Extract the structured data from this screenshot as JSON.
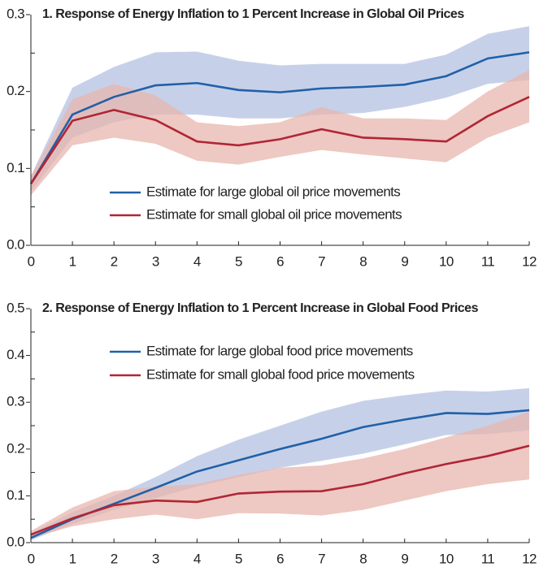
{
  "chart_data": [
    {
      "type": "line",
      "title": "1. Response of Energy Inflation to 1 Percent Increase in Global Oil Prices",
      "x": [
        0,
        1,
        2,
        3,
        4,
        5,
        6,
        7,
        8,
        9,
        10,
        11,
        12
      ],
      "xlim": [
        0,
        12
      ],
      "xticks": [
        0,
        1,
        2,
        3,
        4,
        5,
        6,
        7,
        8,
        9,
        10,
        11,
        12
      ],
      "ylim": [
        0,
        0.3
      ],
      "yticks": [
        {
          "value": 0,
          "label": "0.0"
        },
        0.1,
        0.2,
        0.3
      ],
      "yminor_ticks": [
        0.05,
        0.15,
        0.25
      ],
      "series": [
        {
          "name": "Estimate for large global oil price movements",
          "color": "#2160a8",
          "band_color": "#b3c1e2",
          "values": [
            0.08,
            0.17,
            0.193,
            0.208,
            0.211,
            0.202,
            0.199,
            0.204,
            0.206,
            0.209,
            0.22,
            0.243,
            0.251
          ],
          "upper": [
            0.09,
            0.205,
            0.232,
            0.251,
            0.252,
            0.24,
            0.234,
            0.236,
            0.236,
            0.236,
            0.248,
            0.275,
            0.285
          ],
          "lower": [
            0.07,
            0.14,
            0.16,
            0.17,
            0.17,
            0.165,
            0.165,
            0.17,
            0.172,
            0.18,
            0.192,
            0.21,
            0.215
          ]
        },
        {
          "name": "Estimate for small global oil price movements",
          "color": "#b02634",
          "band_color": "#e8b5ae",
          "values": [
            0.08,
            0.162,
            0.176,
            0.163,
            0.135,
            0.13,
            0.138,
            0.151,
            0.14,
            0.138,
            0.135,
            0.168,
            0.193
          ],
          "upper": [
            0.09,
            0.19,
            0.21,
            0.195,
            0.16,
            0.155,
            0.16,
            0.18,
            0.165,
            0.165,
            0.163,
            0.2,
            0.228
          ],
          "lower": [
            0.065,
            0.13,
            0.14,
            0.132,
            0.11,
            0.105,
            0.115,
            0.124,
            0.118,
            0.113,
            0.108,
            0.14,
            0.16
          ]
        }
      ]
    },
    {
      "type": "line",
      "title": "2. Response of Energy Inflation to 1 Percent Increase in Global Food Prices",
      "x": [
        0,
        1,
        2,
        3,
        4,
        5,
        6,
        7,
        8,
        9,
        10,
        11,
        12
      ],
      "xlim": [
        0,
        12
      ],
      "xticks": [
        0,
        1,
        2,
        3,
        4,
        5,
        6,
        7,
        8,
        9,
        10,
        11,
        12
      ],
      "ylim": [
        0,
        0.5
      ],
      "yticks": [
        {
          "value": 0,
          "label": "0.0"
        },
        0.1,
        0.2,
        0.3,
        0.4,
        0.5
      ],
      "yminor_ticks": [
        0.05,
        0.15,
        0.25,
        0.35,
        0.45
      ],
      "series": [
        {
          "name": "Estimate for large global food price movements",
          "color": "#2160a8",
          "band_color": "#b3c1e2",
          "values": [
            0.01,
            0.05,
            0.083,
            0.117,
            0.152,
            0.176,
            0.2,
            0.222,
            0.247,
            0.263,
            0.277,
            0.275,
            0.283
          ],
          "upper": [
            0.02,
            0.065,
            0.1,
            0.14,
            0.185,
            0.22,
            0.25,
            0.28,
            0.303,
            0.315,
            0.325,
            0.323,
            0.33
          ],
          "lower": [
            0.005,
            0.04,
            0.07,
            0.095,
            0.12,
            0.14,
            0.16,
            0.175,
            0.19,
            0.21,
            0.23,
            0.232,
            0.24
          ]
        },
        {
          "name": "Estimate for small global food price movements",
          "color": "#b02634",
          "band_color": "#e8b5ae",
          "values": [
            0.017,
            0.052,
            0.08,
            0.09,
            0.087,
            0.105,
            0.109,
            0.11,
            0.125,
            0.148,
            0.168,
            0.185,
            0.207
          ],
          "upper": [
            0.025,
            0.075,
            0.11,
            0.12,
            0.125,
            0.145,
            0.16,
            0.165,
            0.18,
            0.2,
            0.225,
            0.25,
            0.28
          ],
          "lower": [
            0.01,
            0.035,
            0.05,
            0.06,
            0.05,
            0.063,
            0.062,
            0.058,
            0.07,
            0.09,
            0.11,
            0.125,
            0.135
          ]
        }
      ]
    }
  ]
}
